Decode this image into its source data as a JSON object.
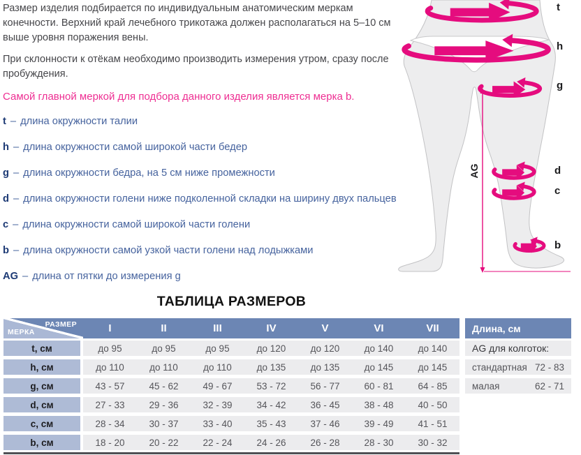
{
  "colors": {
    "accent_pink": "#e50c7e",
    "highlight_text_pink": "#ee2e92",
    "header_blue": "#6c86b4",
    "row_label_blue": "#aebbd6",
    "cell_gray": "#ececee",
    "definition_blue": "#46639e"
  },
  "intro": {
    "paragraph1": "Размер изделия подбирается по индивидуальным анатомическим меркам конечности. Верхний край лечебного трикотажа должен располагаться на 5–10 см выше уровня поражения вены.",
    "paragraph2": "При склонности к отёкам необходимо производить измерения утром, сразу после пробуждения.",
    "highlight": "Самой главной меркой для подбора данного изделия является мерка b."
  },
  "definitions": [
    {
      "term": "t",
      "dash": "–",
      "text": "длина окружности талии"
    },
    {
      "term": "h",
      "dash": "–",
      "text": "длина окружности самой широкой части бедер"
    },
    {
      "term": "g",
      "dash": "–",
      "text": "длина окружности бедра, на 5 см ниже промежности"
    },
    {
      "term": "d",
      "dash": "–",
      "text": "длина окружности голени ниже подколенной складки на ширину двух пальцев"
    },
    {
      "term": "c",
      "dash": "–",
      "text": "длина окружности самой широкой части голени"
    },
    {
      "term": "b",
      "dash": "–",
      "text": "длина окружности самой узкой части голени над лодыжками"
    },
    {
      "term": "AG",
      "dash": "–",
      "text": "длина от пятки до измерения g"
    }
  ],
  "diagram": {
    "labels": {
      "t": "t",
      "h": "h",
      "g": "g",
      "d": "d",
      "c": "c",
      "b": "b",
      "ag": "AG"
    }
  },
  "size_table": {
    "title": "ТАБЛИЦА РАЗМЕРОВ",
    "corner": {
      "top": "РАЗМЕР",
      "bottom": "МЕРКА"
    },
    "columns": [
      "I",
      "II",
      "III",
      "IV",
      "V",
      "VI",
      "VII"
    ],
    "rows": [
      {
        "label": "t, см",
        "values": [
          "до 95",
          "до 95",
          "до 95",
          "до 120",
          "до 120",
          "до 140",
          "до 140"
        ]
      },
      {
        "label": "h, см",
        "values": [
          "до 110",
          "до 110",
          "до 110",
          "до 135",
          "до 135",
          "до 145",
          "до 145"
        ]
      },
      {
        "label": "g, см",
        "values": [
          "43 - 57",
          "45 - 62",
          "49 - 67",
          "53 - 72",
          "56 - 77",
          "60 - 81",
          "64 - 85"
        ]
      },
      {
        "label": "d, см",
        "values": [
          "27 - 33",
          "29 - 36",
          "32 - 39",
          "34 - 42",
          "36 - 45",
          "38 - 48",
          "40 - 50"
        ]
      },
      {
        "label": "c, см",
        "values": [
          "28 - 34",
          "30 - 37",
          "33 - 40",
          "35 - 43",
          "37 - 46",
          "39 - 49",
          "41 - 51"
        ]
      },
      {
        "label": "b, см",
        "values": [
          "18 - 20",
          "20 - 22",
          "22 - 24",
          "24 - 26",
          "26 - 28",
          "28 - 30",
          "30 - 32"
        ]
      }
    ]
  },
  "length_panel": {
    "header": "Длина, см",
    "subtitle": "AG для колготок:",
    "rows": [
      {
        "label": "стандартная",
        "value": "72 - 83"
      },
      {
        "label": "малая",
        "value": "62 - 71"
      }
    ]
  }
}
